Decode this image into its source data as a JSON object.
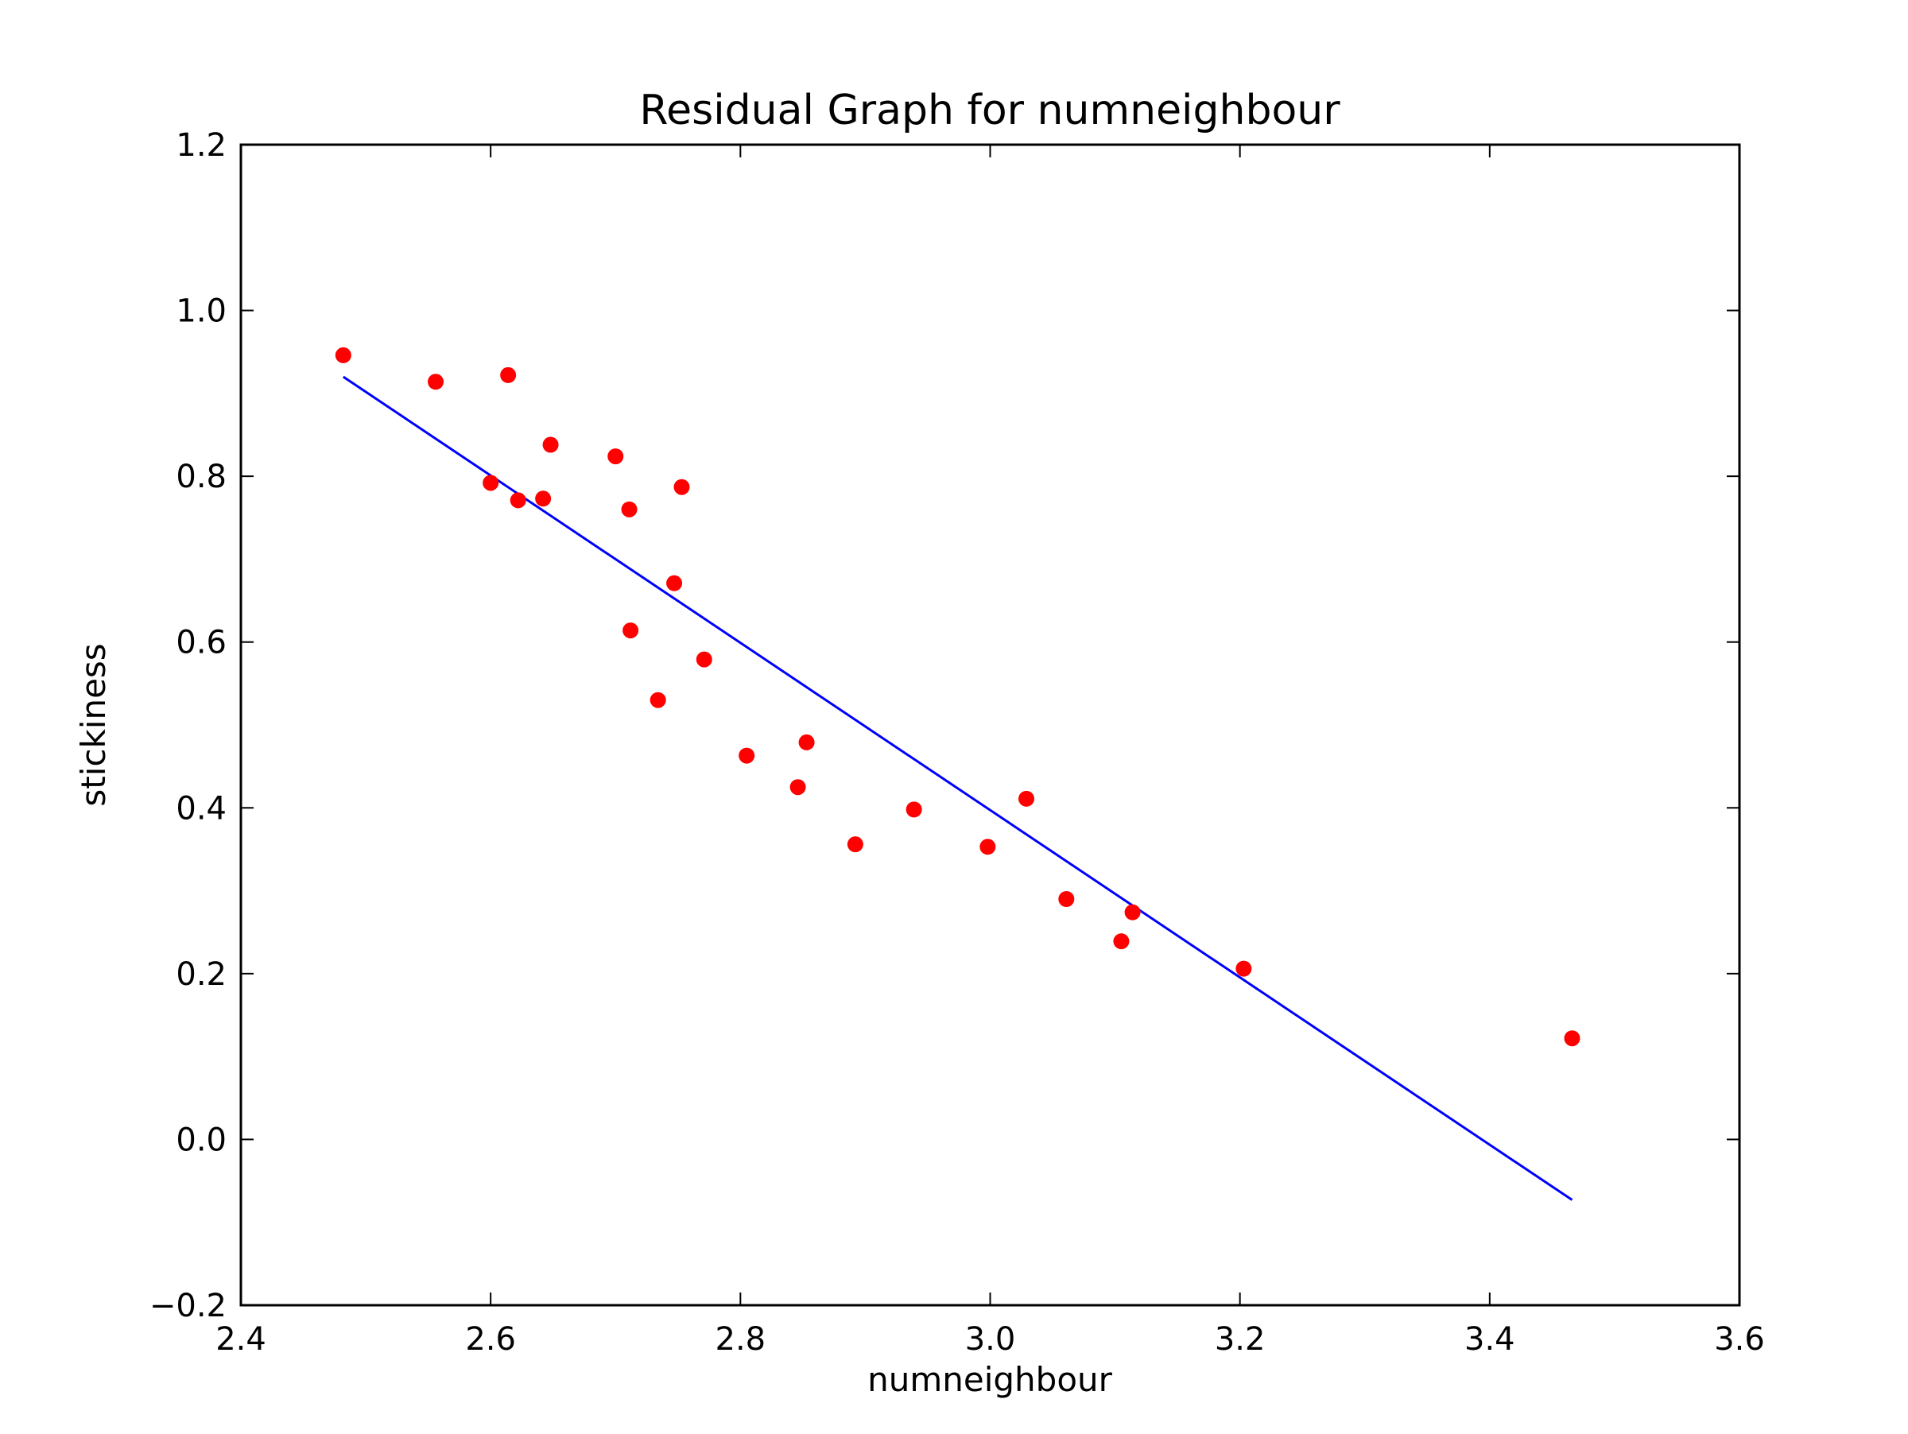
{
  "chart_data": {
    "type": "scatter",
    "title": "Residual Graph for numneighbour",
    "xlabel": "numneighbour",
    "ylabel": "stickiness",
    "xlim": [
      2.4,
      3.6
    ],
    "ylim": [
      -0.2,
      1.2
    ],
    "x_ticks": [
      2.4,
      2.6,
      2.8,
      3.0,
      3.2,
      3.4,
      3.6
    ],
    "x_tick_labels": [
      "2.4",
      "2.6",
      "2.8",
      "3.0",
      "3.2",
      "3.4",
      "3.6"
    ],
    "y_ticks": [
      -0.2,
      0.0,
      0.2,
      0.4,
      0.6,
      0.8,
      1.0,
      1.2
    ],
    "y_tick_labels": [
      "−0.2",
      "0.0",
      "0.2",
      "0.4",
      "0.6",
      "0.8",
      "1.0",
      "1.2"
    ],
    "grid": false,
    "legend": "none",
    "points": {
      "color": "#ff0000",
      "x": [
        2.482,
        2.556,
        2.614,
        2.6,
        2.622,
        2.642,
        2.648,
        2.7,
        2.711,
        2.753,
        2.747,
        2.712,
        2.771,
        2.734,
        2.805,
        2.853,
        2.846,
        2.892,
        2.939,
        2.998,
        3.029,
        3.061,
        3.114,
        3.105,
        3.203,
        3.466
      ],
      "y": [
        0.946,
        0.914,
        0.922,
        0.792,
        0.771,
        0.773,
        0.838,
        0.824,
        0.76,
        0.787,
        0.671,
        0.614,
        0.579,
        0.53,
        0.463,
        0.479,
        0.425,
        0.356,
        0.398,
        0.353,
        0.411,
        0.29,
        0.274,
        0.239,
        0.206,
        0.122
      ]
    },
    "fit_line": {
      "color": "#0000ff",
      "x": [
        2.482,
        3.466
      ],
      "y": [
        0.92,
        -0.073
      ]
    }
  }
}
